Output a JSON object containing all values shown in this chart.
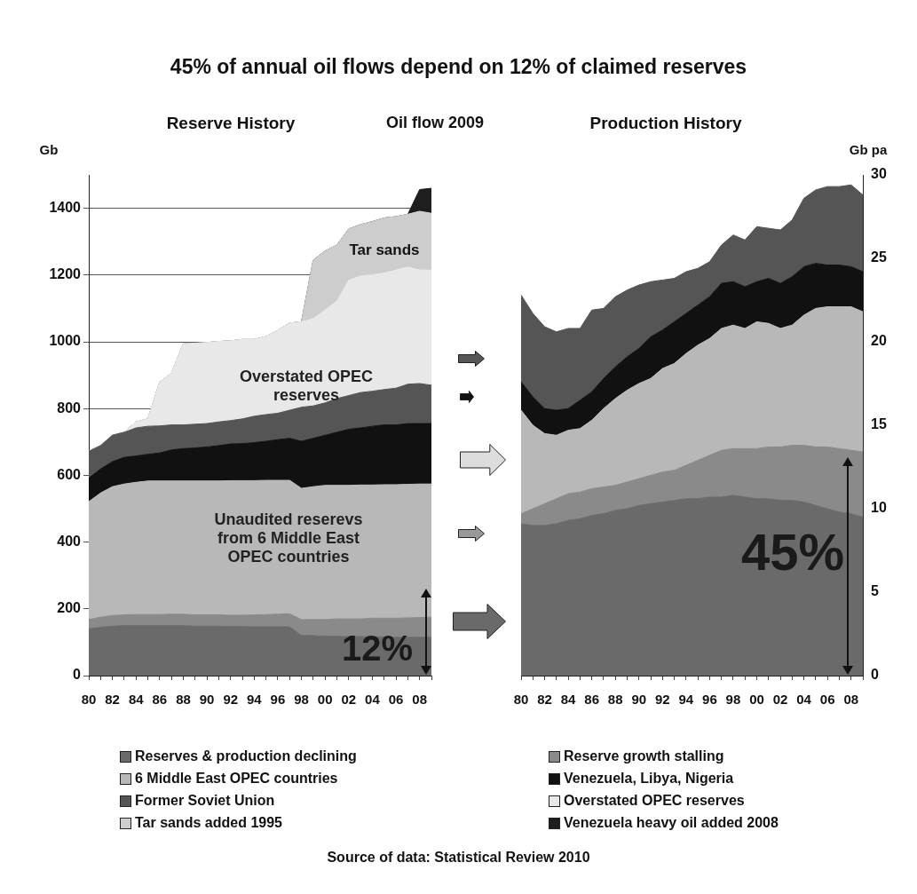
{
  "chart_data": [
    {
      "type": "area",
      "title": "45% of annual oil flows depend on 12% of claimed reserves",
      "subtitle": "Reserve History",
      "ylabel": "Gb",
      "stacked": true,
      "grid": "y",
      "legend": "bottom",
      "categories": [
        "80",
        null,
        "82",
        null,
        "84",
        null,
        "86",
        null,
        "88",
        null,
        "90",
        null,
        "92",
        null,
        "94",
        null,
        "96",
        null,
        "98",
        null,
        "00",
        null,
        "02",
        null,
        "04",
        null,
        "06",
        null,
        "08",
        null
      ],
      "ylim": [
        0,
        1500
      ],
      "yticks": [
        0,
        200,
        400,
        600,
        800,
        1000,
        1200,
        1400
      ],
      "series": [
        {
          "name": "Reserves & production declining",
          "color": "#6a6a6a",
          "values": [
            140,
            145,
            148,
            150,
            150,
            150,
            150,
            150,
            150,
            148,
            148,
            148,
            147,
            147,
            146,
            146,
            146,
            146,
            120,
            120,
            118,
            118,
            117,
            117,
            116,
            116,
            115,
            115,
            115,
            115
          ]
        },
        {
          "name": "Reserve growth stalling",
          "color": "#8a8a8a",
          "values": [
            28,
            30,
            32,
            32,
            33,
            33,
            33,
            34,
            34,
            34,
            34,
            34,
            34,
            34,
            36,
            37,
            38,
            39,
            48,
            48,
            50,
            52,
            53,
            53,
            56,
            56,
            57,
            58,
            59,
            60
          ]
        },
        {
          "name": "6 Middle East OPEC countries",
          "color": "#b8b8b8",
          "values": [
            353,
            372,
            386,
            392,
            396,
            400,
            400,
            399,
            399,
            401,
            401,
            401,
            403,
            403,
            402,
            402,
            401,
            400,
            393,
            398,
            402,
            400,
            400,
            401,
            399,
            400,
            400,
            400,
            400,
            399
          ]
        },
        {
          "name": "Venezuela, Libya, Nigeria",
          "color": "#111111",
          "values": [
            71,
            72,
            75,
            80,
            79,
            80,
            84,
            93,
            97,
            99,
            102,
            106,
            110,
            111,
            114,
            117,
            122,
            126,
            141,
            145,
            150,
            159,
            168,
            171,
            176,
            179,
            179,
            182,
            181,
            181
          ]
        },
        {
          "name": "Former Soviet Union",
          "color": "#555555",
          "values": [
            80,
            70,
            79,
            75,
            84,
            84,
            81,
            75,
            71,
            71,
            70,
            71,
            70,
            74,
            79,
            80,
            79,
            84,
            102,
            97,
            97,
            101,
            101,
            106,
            105,
            106,
            110,
            118,
            120,
            115
          ]
        },
        {
          "name": "Overstated OPEC reserves",
          "color": "#e8e8e8",
          "values": [
            0,
            0,
            0,
            0,
            18,
            22,
            131,
            155,
            243,
            243,
            243,
            241,
            239,
            238,
            230,
            234,
            248,
            261,
            256,
            261,
            278,
            292,
            345,
            349,
            349,
            349,
            354,
            351,
            340,
            345
          ]
        },
        {
          "name": "Tar sands added 1995",
          "color": "#cdcdcd",
          "values": [
            0,
            0,
            0,
            0,
            0,
            0,
            0,
            0,
            0,
            0,
            0,
            0,
            0,
            0,
            0,
            0,
            0,
            0,
            0,
            176,
            177,
            168,
            154,
            154,
            159,
            165,
            160,
            158,
            176,
            170
          ]
        },
        {
          "name": "Venezuela heavy oil added 2008",
          "color": "#1e1e1e",
          "values": [
            0,
            0,
            0,
            0,
            0,
            0,
            0,
            0,
            0,
            0,
            0,
            0,
            0,
            0,
            0,
            0,
            0,
            0,
            0,
            0,
            0,
            0,
            0,
            0,
            0,
            0,
            0,
            0,
            65,
            75
          ]
        }
      ],
      "annotations": [
        "Oil flow 2009",
        "Tar sands",
        "Overstated OPEC reserves",
        "Unaudited reserevs from 6 Middle East OPEC countries",
        "12%"
      ]
    },
    {
      "type": "area",
      "subtitle": "Production History",
      "ylabel": "Gb pa",
      "stacked": true,
      "categories": [
        "80",
        null,
        "82",
        null,
        "84",
        null,
        "86",
        null,
        "88",
        null,
        "90",
        null,
        "92",
        null,
        "94",
        null,
        "96",
        null,
        "98",
        null,
        "00",
        null,
        "02",
        null,
        "04",
        null,
        "06",
        null,
        "08",
        null
      ],
      "ylim": [
        0,
        30
      ],
      "yticks": [
        0,
        5,
        10,
        15,
        20,
        25,
        30
      ],
      "series": [
        {
          "color": "#6a6a6a",
          "values": [
            9.1,
            9.0,
            9.0,
            9.1,
            9.3,
            9.4,
            9.6,
            9.7,
            9.9,
            10.0,
            10.2,
            10.3,
            10.4,
            10.5,
            10.6,
            10.6,
            10.7,
            10.7,
            10.8,
            10.7,
            10.6,
            10.6,
            10.5,
            10.5,
            10.4,
            10.2,
            10.0,
            9.8,
            9.7,
            9.5
          ]
        },
        {
          "color": "#8a8a8a",
          "values": [
            0.6,
            1.0,
            1.3,
            1.5,
            1.6,
            1.6,
            1.6,
            1.6,
            1.5,
            1.6,
            1.6,
            1.7,
            1.8,
            1.8,
            2.0,
            2.3,
            2.5,
            2.8,
            2.8,
            2.9,
            3.0,
            3.1,
            3.2,
            3.3,
            3.4,
            3.5,
            3.7,
            3.8,
            3.8,
            3.9
          ]
        },
        {
          "color": "#b8b8b8",
          "values": [
            6.2,
            5.0,
            4.2,
            3.8,
            3.8,
            3.8,
            4.1,
            4.7,
            5.2,
            5.5,
            5.7,
            5.8,
            6.2,
            6.4,
            6.7,
            6.9,
            7.0,
            7.3,
            7.4,
            7.2,
            7.6,
            7.4,
            7.1,
            7.2,
            7.8,
            8.3,
            8.4,
            8.5,
            8.6,
            8.4
          ]
        },
        {
          "color": "#111111",
          "values": [
            1.7,
            1.7,
            1.5,
            1.5,
            1.3,
            1.7,
            1.7,
            1.8,
            1.9,
            2.0,
            2.1,
            2.5,
            2.3,
            2.5,
            2.4,
            2.4,
            2.5,
            2.7,
            2.6,
            2.5,
            2.4,
            2.7,
            2.7,
            2.9,
            2.9,
            2.7,
            2.5,
            2.5,
            2.4,
            2.4
          ]
        },
        {
          "color": "#555555",
          "values": [
            5.2,
            5.0,
            4.9,
            4.7,
            4.8,
            4.3,
            4.9,
            4.2,
            4.2,
            4.0,
            3.8,
            3.3,
            3.0,
            2.6,
            2.5,
            2.2,
            2.1,
            2.3,
            2.8,
            2.8,
            3.3,
            3.0,
            3.2,
            3.4,
            4.1,
            4.4,
            4.7,
            4.7,
            4.9,
            4.6
          ]
        }
      ],
      "annotations": [
        "45%",
        "Source of data: Statistical Review 2010"
      ]
    }
  ]
}
